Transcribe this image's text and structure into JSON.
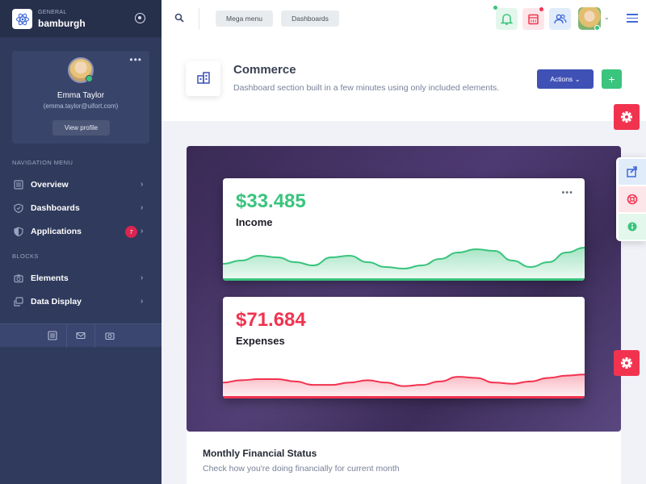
{
  "brand": {
    "small": "GENERAL",
    "name": "bamburgh"
  },
  "profile": {
    "name": "Emma Taylor",
    "email": "(emma.taylor@uifort.com)",
    "button": "View profile"
  },
  "nav": {
    "heading1": "NAVIGATION MENU",
    "items1": [
      {
        "label": "Overview",
        "icon": "list-icon"
      },
      {
        "label": "Dashboards",
        "icon": "shield-icon"
      },
      {
        "label": "Applications",
        "icon": "shield-half-icon",
        "badge": "7"
      }
    ],
    "heading2": "BLOCKS",
    "items2": [
      {
        "label": "Elements",
        "icon": "camera-icon"
      },
      {
        "label": "Data Display",
        "icon": "images-icon"
      }
    ]
  },
  "header": {
    "mega_menu": "Mega menu",
    "dashboards": "Dashboards",
    "icons": [
      "bell-icon",
      "calendar-icon",
      "users-icon"
    ]
  },
  "page": {
    "title": "Commerce",
    "subtitle": "Dashboard section built in a few minutes using only included elements.",
    "actions": "Actions",
    "plus": "+"
  },
  "cards": {
    "income": {
      "value": "$33.485",
      "label": "Income",
      "color": "#3ac47d"
    },
    "expenses": {
      "value": "$71.684",
      "label": "Expenses",
      "color": "#f1334f"
    }
  },
  "chart_data": [
    {
      "type": "area",
      "series": [
        {
          "values": [
            20,
            24,
            30,
            28,
            22,
            18,
            28,
            30,
            22,
            16,
            14,
            18,
            26,
            34,
            38,
            36,
            24,
            16,
            22,
            34,
            40
          ]
        }
      ]
    },
    {
      "type": "area",
      "series": [
        {
          "values": [
            26,
            30,
            32,
            32,
            28,
            22,
            22,
            26,
            30,
            26,
            20,
            22,
            28,
            36,
            34,
            26,
            24,
            28,
            34,
            38,
            40
          ]
        }
      ]
    }
  ],
  "monthly": {
    "title": "Monthly Financial Status",
    "subtitle": "Check how you're doing financially for current month"
  },
  "colors": {
    "sidebar": "#2f3a5c",
    "primary": "#3f51b5",
    "success": "#3ac47d",
    "danger": "#f1334f"
  }
}
